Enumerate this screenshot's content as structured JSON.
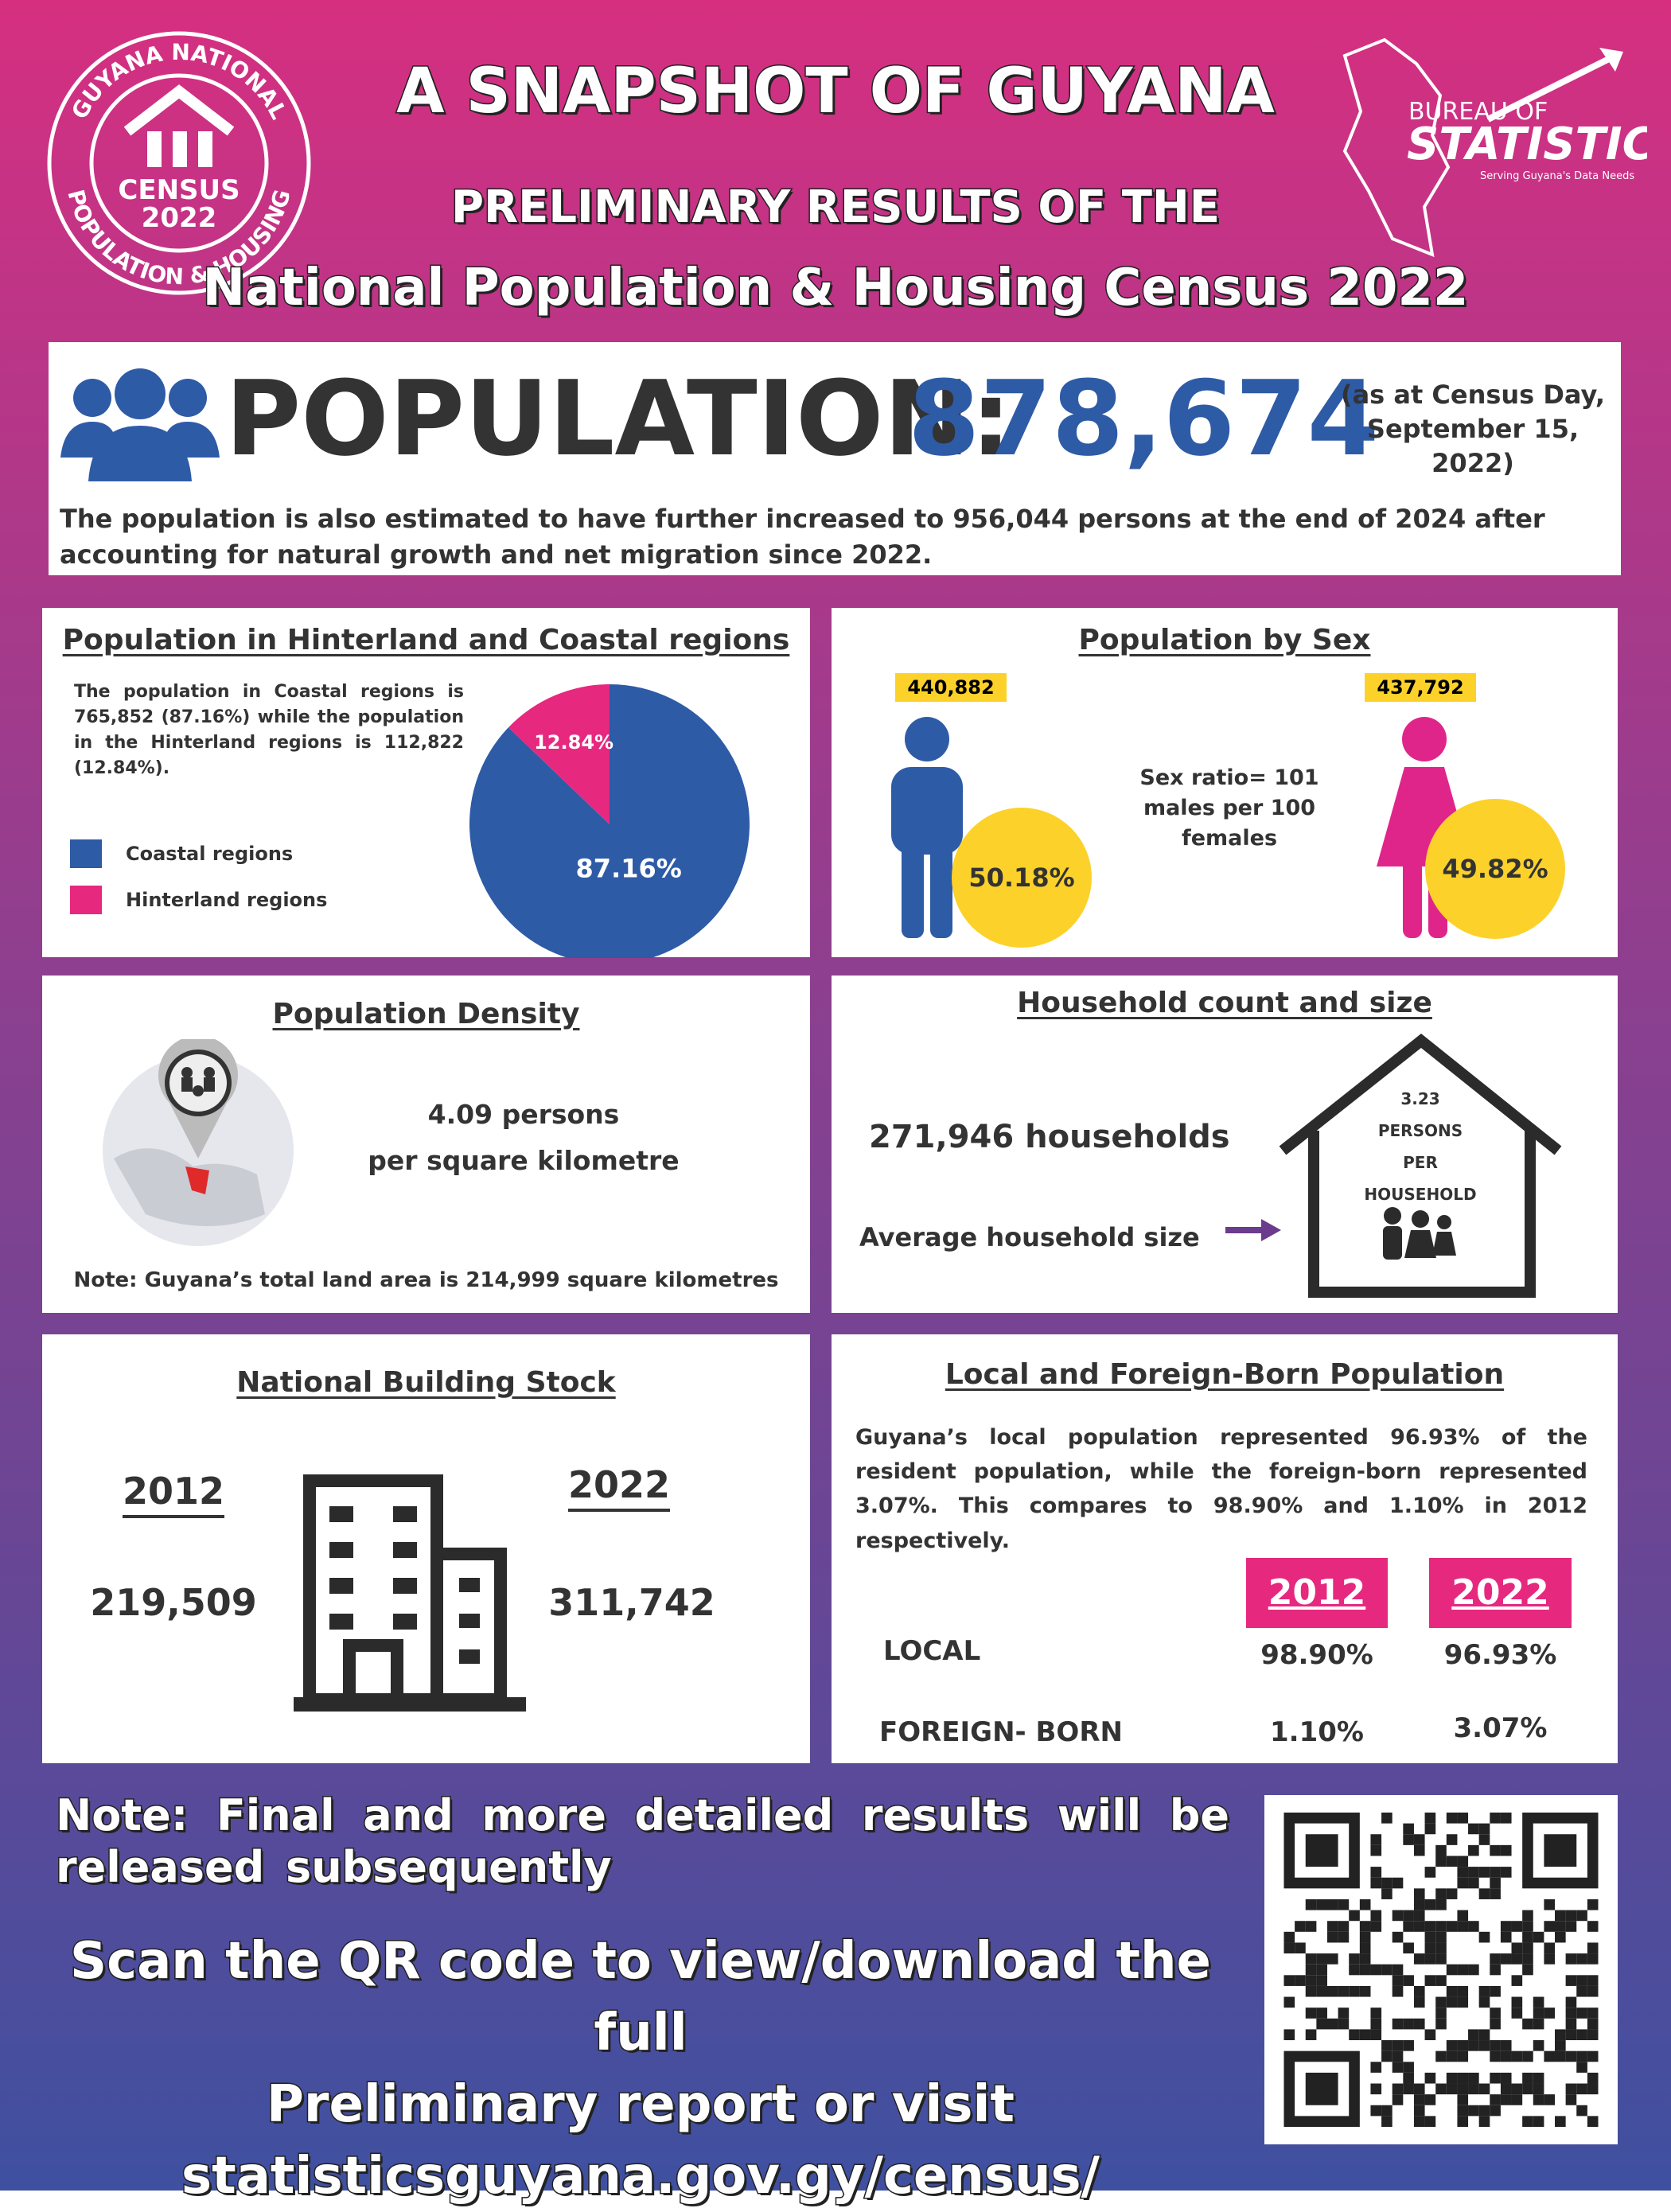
{
  "header": {
    "logo": {
      "top": "GUYANA NATIONAL",
      "census": "CENSUS",
      "year": "2022",
      "bottom": "POPULATION & HOUSING"
    },
    "title": "A SNAPSHOT OF GUYANA",
    "subtitle": "PRELIMINARY RESULTS OF THE",
    "subtitle2": "National Population & Housing Census 2022",
    "bureau": {
      "line1": "BUREAU OF",
      "line2": "STATISTICS",
      "tagline": "Serving Guyana's Data Needs"
    }
  },
  "population": {
    "label": "POPULATION:",
    "value": "878,674",
    "note": "(as at Census Day, September 15, 2022)",
    "text": "The population is also estimated to have further increased to 956,044 persons at the end of 2024 after accounting for natural growth and net migration since 2022."
  },
  "hinterland_coastal": {
    "title": "Population in Hinterland and Coastal regions",
    "text": "The population in Coastal regions is 765,852 (87.16%) while the population in the Hinterland regions is 112,822 (12.84%).",
    "pie": {
      "type": "pie",
      "categories": [
        "Coastal regions",
        "Hinterland regions"
      ],
      "values": [
        87.16,
        12.84
      ],
      "value_labels": [
        "87.16%",
        "12.84%"
      ],
      "colors": [
        "#2e5ba6",
        "#e6287f"
      ]
    }
  },
  "by_sex": {
    "title": "Population by Sex",
    "male_count": "440,882",
    "male_share": "50.18%",
    "female_count": "437,792",
    "female_share": "49.82%",
    "ratio": "Sex ratio= 101 males per 100 females"
  },
  "density": {
    "title": "Population Density",
    "value": "4.09 persons",
    "unit": "per square kilometre",
    "note": "Note: Guyana’s total land area is 214,999 square kilometres"
  },
  "household": {
    "title": "Household count and size",
    "count": "271,946 households",
    "avg_label": "Average household size",
    "avg_value": "3.23",
    "avg_unit": [
      "PERSONS",
      "PER",
      "HOUSEHOLD"
    ]
  },
  "building": {
    "title": "National Building Stock",
    "years": [
      "2012",
      "2022"
    ],
    "values": [
      "219,509",
      "311,742"
    ]
  },
  "origin": {
    "title": "Local and Foreign-Born Population",
    "text": "Guyana’s local population represented 96.93% of the resident population, while the foreign-born represented 3.07%. This compares to 98.90% and 1.10% in 2012 respectively.",
    "table": {
      "header": [
        "2012",
        "2022"
      ],
      "rows": [
        [
          "LOCAL",
          "98.90%",
          "96.93%"
        ],
        [
          "FOREIGN- BORN",
          "1.10%",
          "3.07%"
        ]
      ]
    }
  },
  "footer": {
    "note": "Note: Final and more detailed results will be released subsequently",
    "scan": [
      "Scan the QR code to view/download the full",
      "Preliminary report or visit",
      "statisticsguyana.gov.gy/census/"
    ]
  }
}
